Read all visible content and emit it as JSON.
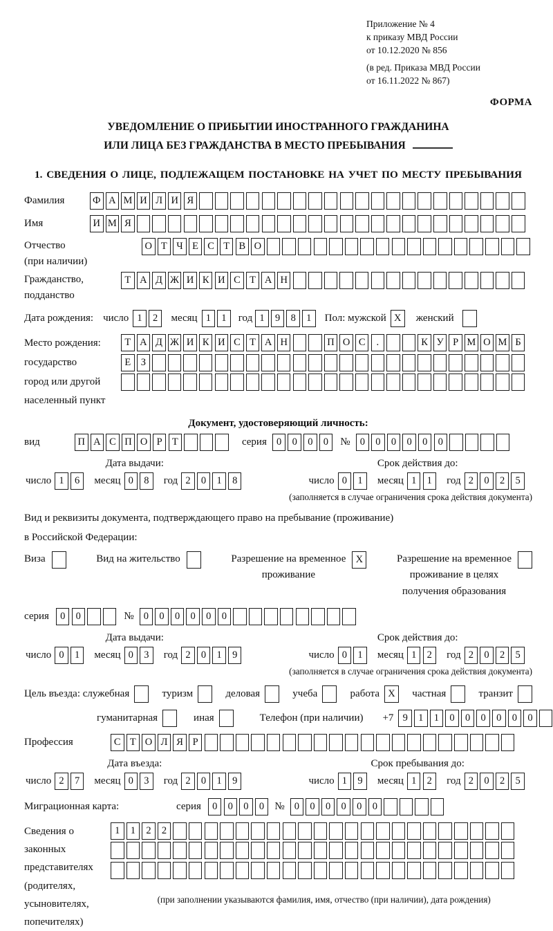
{
  "accent_colors": {
    "ink": "#1a1a1a",
    "paper": "#ffffff"
  },
  "header": {
    "line1": "Приложение № 4",
    "line2": "к приказу МВД России",
    "line3": "от 10.12.2020 № 856",
    "line4": "(в ред. Приказа МВД России",
    "line5": "от 16.11.2022 № 867)",
    "forma": "ФОРМА"
  },
  "title": {
    "line1": "УВЕДОМЛЕНИЕ О ПРИБЫТИИ ИНОСТРАННОГО ГРАЖДАНИНА",
    "line2": "ИЛИ ЛИЦА БЕЗ ГРАЖДАНСТВА В МЕСТО ПРЕБЫВАНИЯ"
  },
  "section1_heading": "1. СВЕДЕНИЯ О ЛИЦЕ, ПОДЛЕЖАЩЕМ ПОСТАНОВКЕ НА УЧЕТ ПО МЕСТУ ПРЕБЫВАНИЯ",
  "labels": {
    "num": "число",
    "mon": "месяц",
    "year": "год"
  },
  "person": {
    "surname_label": "Фамилия",
    "surname": {
      "value": "ФАМИЛИЯ",
      "length": 28
    },
    "name_label": "Имя",
    "name": {
      "value": "ИМЯ",
      "length": 28
    },
    "patr_label": "Отчество",
    "patr_sub": "(при наличии)",
    "patronymic": {
      "value": "ОТЧЕСТВО",
      "length": 25
    },
    "cit_label1": "Гражданство,",
    "cit_label2": "подданство",
    "citizenship": {
      "value": "ТАДЖИКИСТАН",
      "length": 26
    },
    "birth_label": "Дата рождения:",
    "birth_d": {
      "value": "12",
      "length": 2
    },
    "birth_m": {
      "value": "11",
      "length": 2
    },
    "birth_y": {
      "value": "1981",
      "length": 4
    },
    "sex_label": "Пол: мужской",
    "sex_male": "X",
    "female_label": "женский",
    "sex_female": "",
    "birthplace_label1": "Место рождения:",
    "birthplace_label2": "государство",
    "birthplace_label3": "город или другой",
    "birthplace_label4": "населенный пункт",
    "birthplace_rows": [
      {
        "value": "ТАДЖИКИСТАН  ПОС.  КУРМОМБ",
        "length": 26
      },
      {
        "value": "ЕЗ",
        "length": 26
      },
      {
        "value": "",
        "length": 26
      }
    ]
  },
  "iddoc": {
    "heading": "Документ, удостоверяющий личность:",
    "type_label": "вид",
    "type": {
      "value": "ПАСПОРТ",
      "length": 10
    },
    "series_label": "серия",
    "series": {
      "value": "0000",
      "length": 4
    },
    "num_label": "№",
    "number": {
      "value": "000000",
      "length": 10
    },
    "issue_head": "Дата выдачи:",
    "issue_d": {
      "value": "16",
      "length": 2
    },
    "issue_m": {
      "value": "08",
      "length": 2
    },
    "issue_y": {
      "value": "2018",
      "length": 4
    },
    "valid_head": "Срок действия до:",
    "valid_d": {
      "value": "01",
      "length": 2
    },
    "valid_m": {
      "value": "11",
      "length": 2
    },
    "valid_y": {
      "value": "2025",
      "length": 4
    },
    "note": "(заполняется в случае ограничения срока действия документа)"
  },
  "permits": {
    "intro1": "Вид и реквизиты документа, подтверждающего право на пребывание (проживание)",
    "intro2": "в Российской Федерации:",
    "visa_label": "Виза",
    "visa": "",
    "vnj_label": "Вид на жительство",
    "vnj": "",
    "rvp_label1": "Разрешение на временное",
    "rvp_label2": "проживание",
    "rvp": "X",
    "rvpo_label1": "Разрешение на временное",
    "rvpo_label2": "проживание в целях",
    "rvpo_label3": "получения образования",
    "rvpo": ""
  },
  "resid": {
    "series_label": "серия",
    "series": {
      "value": "00",
      "length": 4
    },
    "num_label": "№",
    "number": {
      "value": "000000",
      "length": 14
    },
    "issue_head": "Дата выдачи:",
    "issue_d": {
      "value": "01",
      "length": 2
    },
    "issue_m": {
      "value": "03",
      "length": 2
    },
    "issue_y": {
      "value": "2019",
      "length": 4
    },
    "valid_head": "Срок действия до:",
    "valid_d": {
      "value": "01",
      "length": 2
    },
    "valid_m": {
      "value": "12",
      "length": 2
    },
    "valid_y": {
      "value": "2025",
      "length": 4
    },
    "note": "(заполняется в случае ограничения срока действия документа)"
  },
  "purpose": {
    "label": "Цель въезда: служебная",
    "sluzh": "",
    "turizm_label": "туризм",
    "turizm": "",
    "delov_label": "деловая",
    "delov": "",
    "ucheba_label": "учеба",
    "ucheba": "",
    "rabota_label": "работа",
    "rabota": "X",
    "chast_label": "частная",
    "chast": "",
    "tranzit_label": "транзит",
    "tranzit": "",
    "guman_label": "гуманитарная",
    "guman": "",
    "inaya_label": "иная",
    "inaya": "",
    "phone_label": "Телефон (при наличии)",
    "plus7": "+7",
    "phone": {
      "value": "911000000",
      "length": 10
    }
  },
  "profession": {
    "label": "Профессия",
    "cells": {
      "value": "СТОЛЯР",
      "length": 26
    }
  },
  "entry": {
    "issue_head": "Дата въезда:",
    "issue_d": {
      "value": "27",
      "length": 2
    },
    "issue_m": {
      "value": "03",
      "length": 2
    },
    "issue_y": {
      "value": "2019",
      "length": 4
    },
    "valid_head": "Срок пребывания до:",
    "valid_d": {
      "value": "19",
      "length": 2
    },
    "valid_m": {
      "value": "12",
      "length": 2
    },
    "valid_y": {
      "value": "2025",
      "length": 4
    }
  },
  "migration": {
    "label": "Миграционная карта:",
    "series_label": "серия",
    "series": {
      "value": "0000",
      "length": 4
    },
    "num_label": "№",
    "number": {
      "value": "000000",
      "length": 10
    }
  },
  "reps": {
    "label1": "Сведения о",
    "label2": "законных",
    "label3": "представителях",
    "label4": "(родителях,",
    "label5": "усыновителях,",
    "label6": "попечителях)",
    "rows": [
      {
        "value": "1122",
        "length": 26
      },
      {
        "value": "",
        "length": 26
      },
      {
        "value": "",
        "length": 26
      }
    ],
    "note": "(при заполнении указываются фамилия, имя, отчество (при наличии), дата рождения)"
  }
}
